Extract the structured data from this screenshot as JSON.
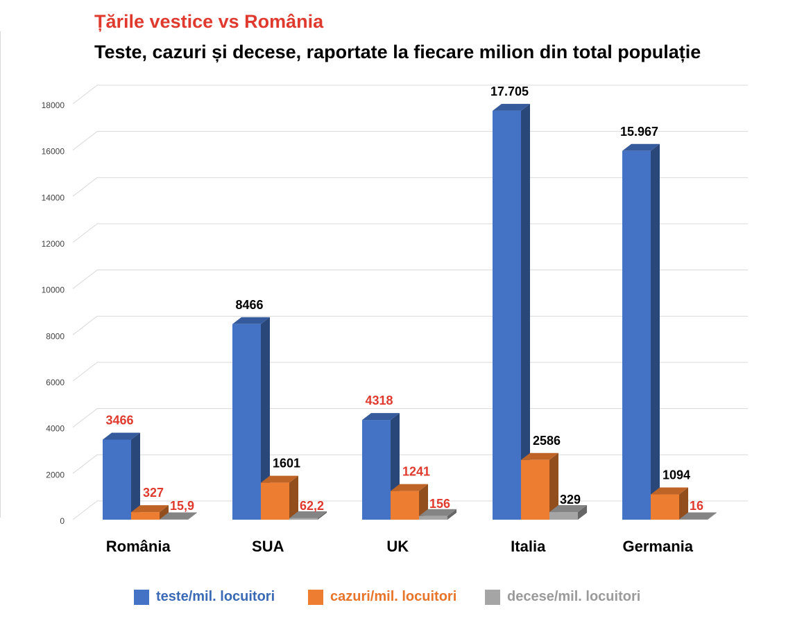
{
  "title": "Țările vestice vs România",
  "subtitle": "Teste, cazuri și decese, raportate la fiecare milion din total populație",
  "chart_data": {
    "type": "bar",
    "title": "Țările vestice vs România",
    "subtitle": "Teste, cazuri și decese, raportate la fiecare milion din total populație",
    "categories": [
      "România",
      "SUA",
      "UK",
      "Italia",
      "Germania"
    ],
    "ylim": [
      0,
      18000
    ],
    "yticks": [
      0,
      2000,
      4000,
      6000,
      8000,
      10000,
      12000,
      14000,
      16000,
      18000
    ],
    "grid": true,
    "legend_position": "bottom",
    "series": [
      {
        "name": "teste/mil. locuitori",
        "color": "#4472c4",
        "values": [
          3466,
          8466,
          4318,
          17705,
          15967
        ],
        "labels": [
          "3466",
          "8466",
          "4318",
          "17.705",
          "15.967"
        ],
        "label_colors": [
          "#e03a2f",
          "#000000",
          "#e03a2f",
          "#000000",
          "#000000"
        ]
      },
      {
        "name": "cazuri/mil. locuitori",
        "color": "#ed7d31",
        "values": [
          327,
          1601,
          1241,
          2586,
          1094
        ],
        "labels": [
          "327",
          "1601",
          "1241",
          "2586",
          "1094"
        ],
        "label_colors": [
          "#e03a2f",
          "#000000",
          "#e03a2f",
          "#000000",
          "#000000"
        ]
      },
      {
        "name": "decese/mil. locuitori",
        "color": "#a5a5a5",
        "values": [
          15.9,
          62.2,
          156,
          329,
          16
        ],
        "labels": [
          "15,9",
          "62,2",
          "156",
          "329",
          "16"
        ],
        "label_colors": [
          "#e03a2f",
          "#e03a2f",
          "#e03a2f",
          "#000000",
          "#e03a2f"
        ]
      }
    ]
  },
  "legend_text_colors": [
    "#3a6ab5",
    "#e8742a",
    "#9a9a9a"
  ]
}
